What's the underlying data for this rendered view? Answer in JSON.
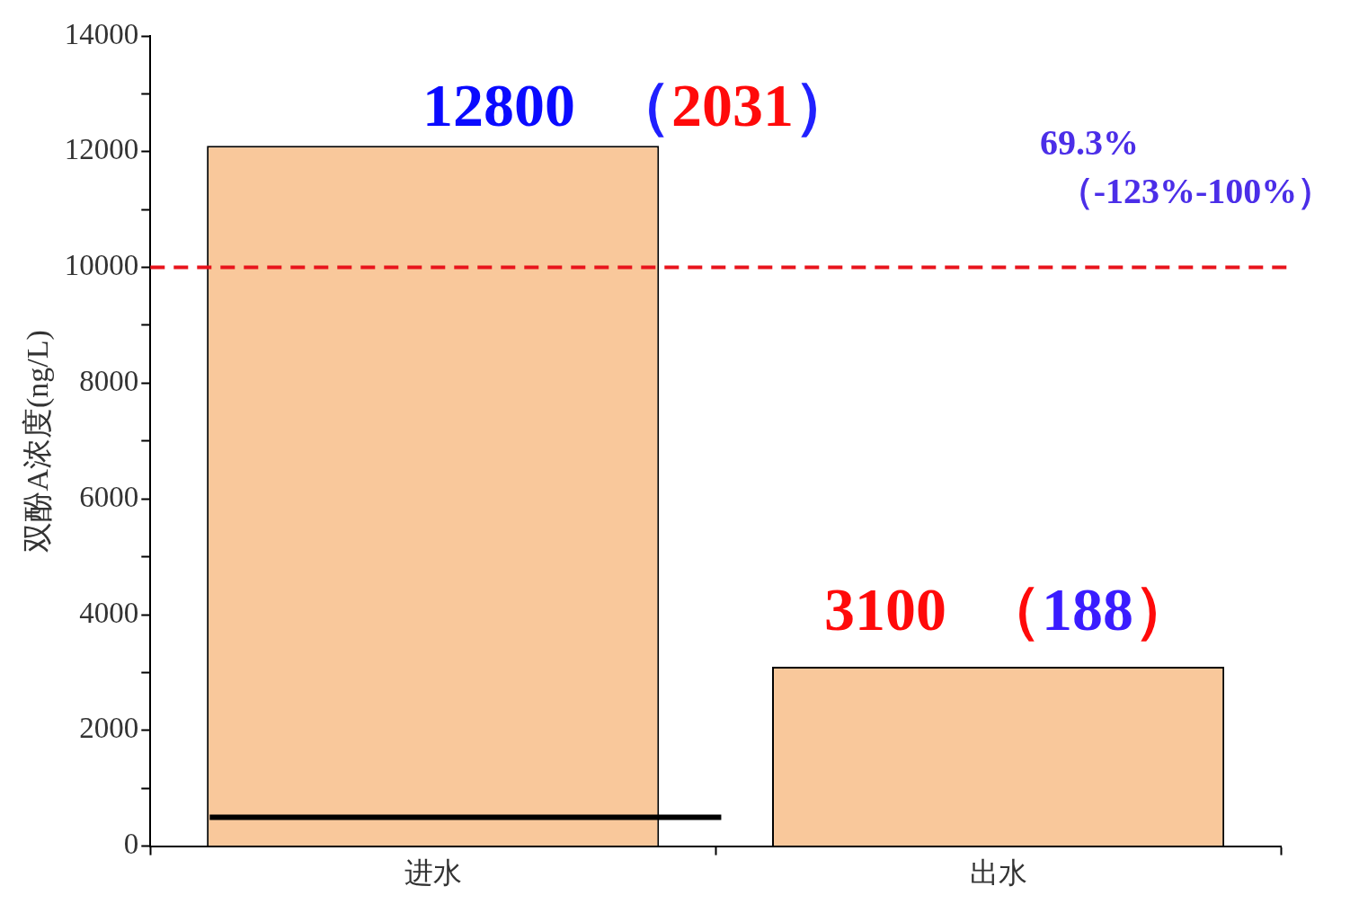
{
  "chart_data": {
    "type": "bar",
    "ylabel": "双酚A浓度(ng/L)",
    "categories": [
      "进水",
      "出水"
    ],
    "values": [
      12100,
      3100
    ],
    "color": "#f9c89b",
    "ylim": [
      0,
      14000
    ],
    "yticks": [
      0,
      {
        "value": 1000,
        "label": null
      },
      2000,
      {
        "value": 3000,
        "label": null
      },
      4000,
      {
        "value": 5000,
        "label": null
      },
      6000,
      {
        "value": 7000,
        "label": null
      },
      8000,
      {
        "value": 9000,
        "label": null
      },
      10000,
      {
        "value": 11000,
        "label": null
      },
      12000,
      {
        "value": 13000,
        "label": null
      },
      14000
    ],
    "grid": false,
    "legend": false,
    "ref_lines": [
      {
        "axis": "y",
        "value": 10000,
        "color": "#e8141c",
        "line_style": "dashed"
      },
      {
        "axis": "y",
        "value": 500,
        "color": "#000000",
        "line_style": "solid"
      }
    ],
    "annotations": [
      "12800",
      "（2031）",
      "3100",
      "（188）",
      "69.3%",
      "（-123%-100%）"
    ]
  }
}
